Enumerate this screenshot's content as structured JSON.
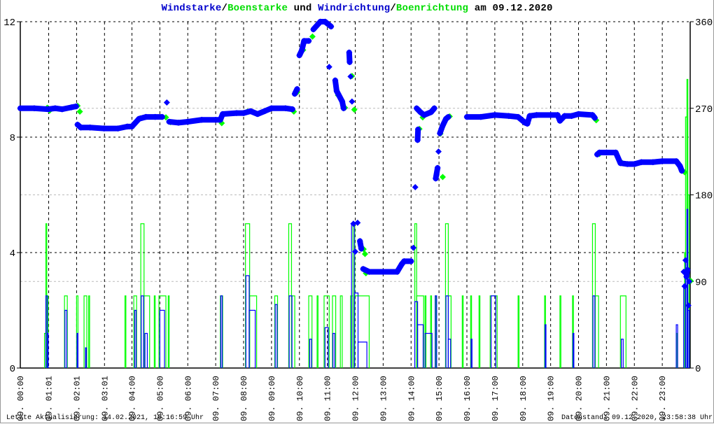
{
  "chart_data": {
    "type": "line",
    "title_parts": [
      "Windstarke",
      "/",
      "Boenstarke",
      " und ",
      "Windrichtung",
      "/",
      "Boenrichtung",
      " am 09.12.2020"
    ],
    "y_left": {
      "range": [
        0,
        12
      ],
      "ticks": [
        "0",
        "4",
        "8",
        "12"
      ],
      "unit": "m/s"
    },
    "y_right": {
      "range": [
        0,
        360
      ],
      "ticks": [
        "0",
        "90",
        "180",
        "270",
        "360"
      ],
      "unit": "deg"
    },
    "x": {
      "range": [
        "00:00",
        "24:00"
      ],
      "tick_labels": [
        "09. 00:00",
        "09. 01:01",
        "09. 02:01",
        "09. 03:01",
        "09. 04:00",
        "09. 05:00",
        "09. 06:00",
        "09. 07:00",
        "09. 08:00",
        "09. 09:00",
        "09. 10:00",
        "09. 11:00",
        "09. 12:00",
        "09. 13:00",
        "09. 14:00",
        "09. 15:00",
        "09. 16:00",
        "09. 17:00",
        "09. 18:00",
        "09. 19:00",
        "09. 20:00",
        "09. 21:00",
        "09. 22:00",
        "09. 23:00"
      ]
    },
    "grid": true,
    "colors": {
      "wind": "#0000ff",
      "gust": "#00ff00",
      "title_wind": "#0000cc",
      "title_gust": "#00dd00",
      "grid": "#000000",
      "subgrid": "#bbbbbb"
    },
    "series": [
      {
        "name": "Windrichtung",
        "axis": "right",
        "style": "diamonds",
        "color": "#0000ff",
        "points": [
          [
            "00:00",
            270
          ],
          [
            "00:30",
            270
          ],
          [
            "01:00",
            269
          ],
          [
            "01:15",
            270
          ],
          [
            "01:30",
            269
          ],
          [
            "01:50",
            271
          ],
          [
            "02:00",
            272
          ],
          [
            "02:03",
            253
          ],
          [
            "02:10",
            250
          ],
          [
            "02:30",
            250
          ],
          [
            "03:00",
            249
          ],
          [
            "03:30",
            249
          ],
          [
            "03:50",
            251
          ],
          [
            "04:00",
            251
          ],
          [
            "04:15",
            259
          ],
          [
            "04:30",
            261
          ],
          [
            "04:50",
            261
          ],
          [
            "05:05",
            261
          ],
          [
            "05:15",
            276
          ],
          [
            "05:20",
            256
          ],
          [
            "05:40",
            255
          ],
          [
            "06:00",
            256
          ],
          [
            "06:30",
            258
          ],
          [
            "07:00",
            258
          ],
          [
            "07:10",
            258
          ],
          [
            "07:15",
            264
          ],
          [
            "07:45",
            265
          ],
          [
            "08:00",
            265
          ],
          [
            "08:15",
            267
          ],
          [
            "08:30",
            264
          ],
          [
            "08:45",
            267
          ],
          [
            "09:00",
            270
          ],
          [
            "09:30",
            270
          ],
          [
            "09:45",
            269
          ],
          [
            "09:50",
            285
          ],
          [
            "09:55",
            290
          ],
          [
            "10:00",
            325
          ],
          [
            "10:05",
            330
          ],
          [
            "10:10",
            340
          ],
          [
            "10:20",
            340
          ],
          [
            "10:30",
            352
          ],
          [
            "10:45",
            360
          ],
          [
            "10:55",
            360
          ],
          [
            "11:08",
            355
          ],
          [
            "11:04",
            313
          ],
          [
            "11:17",
            299
          ],
          [
            "11:20",
            288
          ],
          [
            "11:32",
            277
          ],
          [
            "11:35",
            270
          ],
          [
            "11:47",
            328
          ],
          [
            "11:48",
            318
          ],
          [
            "11:50",
            303
          ],
          [
            "11:53",
            277
          ],
          [
            "11:56",
            150
          ],
          [
            "12:00",
            121
          ],
          [
            "12:05",
            151
          ],
          [
            "12:10",
            132
          ],
          [
            "12:13",
            124
          ],
          [
            "12:17",
            103
          ],
          [
            "12:30",
            100
          ],
          [
            "13:00",
            100
          ],
          [
            "13:30",
            100
          ],
          [
            "13:40",
            108
          ],
          [
            "13:45",
            111
          ],
          [
            "14:00",
            111
          ],
          [
            "14:05",
            125
          ],
          [
            "14:09",
            188
          ],
          [
            "14:14",
            237
          ],
          [
            "14:15",
            248
          ],
          [
            "14:12",
            270
          ],
          [
            "14:20",
            266
          ],
          [
            "14:28",
            263
          ],
          [
            "14:43",
            266
          ],
          [
            "14:50",
            270
          ],
          [
            "14:53",
            197
          ],
          [
            "14:57",
            208
          ],
          [
            "14:59",
            225
          ],
          [
            "15:02",
            244
          ],
          [
            "15:08",
            252
          ],
          [
            "15:15",
            259
          ],
          [
            "15:20",
            261
          ],
          [
            "16:00",
            261
          ],
          [
            "16:30",
            261
          ],
          [
            "17:00",
            263
          ],
          [
            "17:30",
            262
          ],
          [
            "17:50",
            261
          ],
          [
            "18:05",
            255
          ],
          [
            "18:10",
            254
          ],
          [
            "18:15",
            262
          ],
          [
            "18:30",
            263
          ],
          [
            "19:00",
            263
          ],
          [
            "19:15",
            263
          ],
          [
            "19:20",
            257
          ],
          [
            "19:30",
            262
          ],
          [
            "19:45",
            262
          ],
          [
            "20:00",
            264
          ],
          [
            "20:30",
            263
          ],
          [
            "20:35",
            260
          ],
          [
            "20:40",
            222
          ],
          [
            "20:45",
            224
          ],
          [
            "21:00",
            224
          ],
          [
            "21:20",
            224
          ],
          [
            "21:30",
            213
          ],
          [
            "21:45",
            212
          ],
          [
            "22:00",
            212
          ],
          [
            "22:15",
            214
          ],
          [
            "22:40",
            214
          ],
          [
            "23:00",
            215
          ],
          [
            "23:30",
            215
          ],
          [
            "23:38",
            210
          ],
          [
            "23:42",
            205
          ],
          [
            "23:46",
            100
          ],
          [
            "23:48",
            85
          ],
          [
            "23:50",
            112
          ],
          [
            "23:52",
            95
          ],
          [
            "23:54",
            102
          ],
          [
            "23:56",
            65
          ],
          [
            "23:58",
            90
          ]
        ]
      },
      {
        "name": "Boenrichtung",
        "axis": "right",
        "style": "diamonds",
        "color": "#00ff00",
        "points": [
          [
            "00:55",
            272
          ],
          [
            "01:00",
            269
          ],
          [
            "02:00",
            274
          ],
          [
            "02:05",
            268
          ],
          [
            "04:15",
            261
          ],
          [
            "05:10",
            262
          ],
          [
            "05:20",
            257
          ],
          [
            "07:10",
            256
          ],
          [
            "08:05",
            268
          ],
          [
            "09:45",
            268
          ],
          [
            "09:52",
            288
          ],
          [
            "10:05",
            332
          ],
          [
            "10:25",
            346
          ],
          [
            "11:20",
            285
          ],
          [
            "11:35",
            272
          ],
          [
            "11:50",
            305
          ],
          [
            "11:55",
            270
          ],
          [
            "12:15",
            125
          ],
          [
            "12:18",
            120
          ],
          [
            "12:20",
            100
          ],
          [
            "14:15",
            250
          ],
          [
            "14:22",
            262
          ],
          [
            "15:00",
            245
          ],
          [
            "15:05",
            200
          ],
          [
            "15:20",
            263
          ],
          [
            "20:35",
            259
          ],
          [
            "20:42",
            224
          ],
          [
            "21:30",
            215
          ],
          [
            "23:45",
            205
          ],
          [
            "23:58",
            92
          ]
        ]
      },
      {
        "name": "Boenstarke",
        "axis": "left",
        "style": "steps",
        "color": "#00ff00",
        "intervals": [
          [
            "00:52",
            "00:55",
            1.2
          ],
          [
            "00:55",
            "00:57",
            5.0
          ],
          [
            "00:57",
            "01:00",
            2.5
          ],
          [
            "01:35",
            "01:41",
            2.5
          ],
          [
            "02:01",
            "02:04",
            2.5
          ],
          [
            "02:17",
            "02:23",
            2.5
          ],
          [
            "02:27",
            "02:29",
            2.5
          ],
          [
            "03:45",
            "03:47",
            2.5
          ],
          [
            "04:04",
            "04:10",
            2.5
          ],
          [
            "04:19",
            "04:26",
            5.0
          ],
          [
            "04:26",
            "04:38",
            2.5
          ],
          [
            "04:48",
            "04:50",
            2.5
          ],
          [
            "04:58",
            "05:13",
            2.5
          ],
          [
            "05:18",
            "05:20",
            2.5
          ],
          [
            "07:10",
            "07:15",
            2.5
          ],
          [
            "08:04",
            "08:13",
            5.0
          ],
          [
            "08:13",
            "08:28",
            2.5
          ],
          [
            "09:07",
            "09:13",
            2.5
          ],
          [
            "09:37",
            "09:43",
            5.0
          ],
          [
            "09:43",
            "09:50",
            2.5
          ],
          [
            "10:20",
            "10:27",
            2.5
          ],
          [
            "10:38",
            "10:40",
            2.5
          ],
          [
            "10:53",
            "11:04",
            2.5
          ],
          [
            "11:11",
            "11:18",
            2.5
          ],
          [
            "11:28",
            "11:32",
            2.5
          ],
          [
            "11:50",
            "11:55",
            2.5
          ],
          [
            "11:55",
            "11:59",
            5.0
          ],
          [
            "11:59",
            "12:30",
            2.5
          ],
          [
            "14:08",
            "14:12",
            5.0
          ],
          [
            "14:12",
            "14:27",
            2.5
          ],
          [
            "14:30",
            "14:32",
            2.5
          ],
          [
            "14:42",
            "14:44",
            2.5
          ],
          [
            "14:52",
            "14:54",
            2.5
          ],
          [
            "15:14",
            "15:20",
            5.0
          ],
          [
            "15:20",
            "15:26",
            2.5
          ],
          [
            "15:50",
            "15:52",
            2.5
          ],
          [
            "16:08",
            "16:10",
            2.5
          ],
          [
            "16:26",
            "16:28",
            2.5
          ],
          [
            "16:50",
            "17:05",
            2.5
          ],
          [
            "17:50",
            "17:52",
            2.5
          ],
          [
            "18:47",
            "18:49",
            2.5
          ],
          [
            "19:20",
            "19:22",
            2.5
          ],
          [
            "19:47",
            "19:49",
            2.5
          ],
          [
            "20:30",
            "20:36",
            5.0
          ],
          [
            "20:36",
            "20:43",
            2.5
          ],
          [
            "21:30",
            "21:42",
            2.5
          ],
          [
            "23:30",
            "23:32",
            1.2
          ],
          [
            "23:48",
            "23:50",
            4.0
          ],
          [
            "23:50",
            "23:53",
            8.7
          ],
          [
            "23:53",
            "23:55",
            10.0
          ],
          [
            "23:55",
            "23:58",
            6.0
          ]
        ]
      },
      {
        "name": "Windstarke",
        "axis": "left",
        "style": "steps",
        "color": "#0000ff",
        "intervals": [
          [
            "00:55",
            "00:58",
            2.5
          ],
          [
            "00:58",
            "01:00",
            1.2
          ],
          [
            "01:36",
            "01:40",
            2.0
          ],
          [
            "02:02",
            "02:04",
            1.2
          ],
          [
            "02:20",
            "02:22",
            0.7
          ],
          [
            "04:06",
            "04:09",
            2.0
          ],
          [
            "04:20",
            "04:25",
            2.5
          ],
          [
            "04:28",
            "04:33",
            1.2
          ],
          [
            "05:00",
            "05:10",
            2.0
          ],
          [
            "07:11",
            "07:14",
            2.5
          ],
          [
            "08:05",
            "08:12",
            3.2
          ],
          [
            "08:12",
            "08:25",
            2.0
          ],
          [
            "09:08",
            "09:12",
            2.2
          ],
          [
            "09:38",
            "09:44",
            2.5
          ],
          [
            "10:22",
            "10:26",
            1.0
          ],
          [
            "10:55",
            "11:02",
            1.4
          ],
          [
            "11:12",
            "11:16",
            1.2
          ],
          [
            "11:52",
            "11:58",
            5.0
          ],
          [
            "11:58",
            "12:06",
            2.6
          ],
          [
            "12:06",
            "12:25",
            0.9
          ],
          [
            "14:08",
            "14:14",
            2.3
          ],
          [
            "14:14",
            "14:26",
            1.5
          ],
          [
            "14:30",
            "14:45",
            1.2
          ],
          [
            "14:52",
            "14:55",
            2.5
          ],
          [
            "15:15",
            "15:20",
            2.5
          ],
          [
            "15:20",
            "15:25",
            1.0
          ],
          [
            "16:09",
            "16:11",
            1.0
          ],
          [
            "16:52",
            "17:02",
            2.5
          ],
          [
            "18:48",
            "18:50",
            1.5
          ],
          [
            "19:48",
            "19:50",
            1.2
          ],
          [
            "20:31",
            "20:35",
            2.5
          ],
          [
            "21:32",
            "21:36",
            1.0
          ],
          [
            "23:30",
            "23:33",
            1.5
          ],
          [
            "23:46",
            "23:50",
            2.9
          ],
          [
            "23:50",
            "23:53",
            3.7
          ],
          [
            "23:53",
            "23:55",
            5.5
          ],
          [
            "23:55",
            "23:58",
            2.0
          ]
        ]
      }
    ]
  },
  "footer": {
    "last_update": "Letzte Aktualisierung: 14.02.2021, 10:16:59 Uhr",
    "data_state": "Datenstand: 09.12.2020, 23:58:38 Uhr"
  }
}
